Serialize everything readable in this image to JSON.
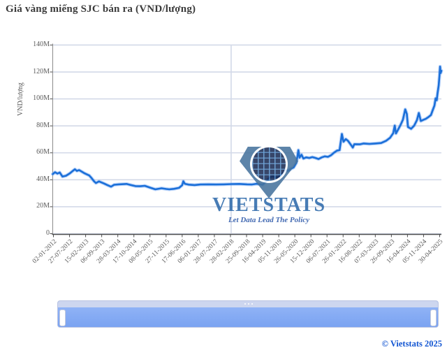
{
  "title": "Giá vàng miếng SJC bán ra (VND/lượng)",
  "watermark": {
    "brand": "VIETSTATS",
    "tagline": "Let Data Lead The Policy"
  },
  "footer": {
    "copyright": "© Vietstats 2025"
  },
  "colors": {
    "line": "#1b6fd8",
    "line_halo": "rgba(96,156,245,0.4)",
    "gridline": "#d3d9e8",
    "axis": "#4d4d4d",
    "tick_text": "#5c5c5c",
    "title_text": "#3b3b3b",
    "watermark_blue": "#2f6bab",
    "slider_track": "#7ea6f2",
    "slider_header": "#cdd6ef",
    "copyright_blue": "#1356d2"
  },
  "slider": {
    "present": true,
    "grip": "dots",
    "handles": [
      "left",
      "right"
    ]
  },
  "chart_data": {
    "type": "line",
    "title": "Giá vàng miếng SJC bán ra (VND/lượng)",
    "xlabel": "",
    "ylabel": "VND/lượng",
    "unit": "million VND per luong",
    "ylim": [
      0,
      140000000
    ],
    "grid": {
      "horizontal": true,
      "vertical_line_x_fraction": 0.459
    },
    "legend": "none",
    "ytick_values": [
      0,
      20,
      40,
      60,
      80,
      100,
      120,
      140
    ],
    "ytick_labels": [
      "0",
      "20M",
      "40M",
      "60M",
      "80M",
      "100M",
      "120M",
      "140M"
    ],
    "xtick_labels": [
      "02-01-2012",
      "27-07-2012",
      "15-02-2013",
      "06-09-2013",
      "28-03-2014",
      "17-10-2014",
      "08-05-2015",
      "27-11-2015",
      "17-06-2016",
      "06-01-2017",
      "28-07-2017",
      "28-02-2018",
      "25-09-2018",
      "16-04-2019",
      "05-11-2019",
      "26-05-2020",
      "15-12-2020",
      "06-07-2021",
      "26-01-2022",
      "16-08-2022",
      "07-03-2023",
      "26-09-2023",
      "16-04-2024",
      "05-11-2024",
      "30-04-2025"
    ],
    "series": [
      {
        "name": "Giá vàng miếng SJC bán ra",
        "color": "#1b6fd8",
        "points_format": "[x_fraction_of_plot_width, value_in_million_VND]",
        "points": [
          [
            0.0,
            44.2
          ],
          [
            0.006,
            45.6
          ],
          [
            0.012,
            44.6
          ],
          [
            0.018,
            45.4
          ],
          [
            0.025,
            42.4
          ],
          [
            0.034,
            43.0
          ],
          [
            0.044,
            44.8
          ],
          [
            0.05,
            46.2
          ],
          [
            0.057,
            47.8
          ],
          [
            0.062,
            46.6
          ],
          [
            0.068,
            47.2
          ],
          [
            0.075,
            46.0
          ],
          [
            0.082,
            44.8
          ],
          [
            0.094,
            43.2
          ],
          [
            0.1,
            41.2
          ],
          [
            0.106,
            39.0
          ],
          [
            0.111,
            37.6
          ],
          [
            0.119,
            38.8
          ],
          [
            0.132,
            37.2
          ],
          [
            0.141,
            36.0
          ],
          [
            0.15,
            34.9
          ],
          [
            0.158,
            36.3
          ],
          [
            0.17,
            36.6
          ],
          [
            0.19,
            36.9
          ],
          [
            0.2,
            36.2
          ],
          [
            0.213,
            35.3
          ],
          [
            0.225,
            35.2
          ],
          [
            0.237,
            35.5
          ],
          [
            0.25,
            34.2
          ],
          [
            0.264,
            32.9
          ],
          [
            0.28,
            33.7
          ],
          [
            0.292,
            33.2
          ],
          [
            0.3,
            32.9
          ],
          [
            0.312,
            33.3
          ],
          [
            0.325,
            34.0
          ],
          [
            0.333,
            36.0
          ],
          [
            0.336,
            38.9
          ],
          [
            0.34,
            37.0
          ],
          [
            0.35,
            36.4
          ],
          [
            0.365,
            36.1
          ],
          [
            0.38,
            36.5
          ],
          [
            0.4,
            36.6
          ],
          [
            0.42,
            36.5
          ],
          [
            0.44,
            36.6
          ],
          [
            0.46,
            36.8
          ],
          [
            0.48,
            36.9
          ],
          [
            0.5,
            36.6
          ],
          [
            0.512,
            36.5
          ],
          [
            0.524,
            37.0
          ],
          [
            0.54,
            36.4
          ],
          [
            0.55,
            39.2
          ],
          [
            0.558,
            41.8
          ],
          [
            0.566,
            42.4
          ],
          [
            0.577,
            41.6
          ],
          [
            0.59,
            44.2
          ],
          [
            0.6,
            47.4
          ],
          [
            0.605,
            46.6
          ],
          [
            0.612,
            48.0
          ],
          [
            0.62,
            49.2
          ],
          [
            0.627,
            52.6
          ],
          [
            0.632,
            62.0
          ],
          [
            0.635,
            56.4
          ],
          [
            0.64,
            58.6
          ],
          [
            0.645,
            55.8
          ],
          [
            0.652,
            56.6
          ],
          [
            0.66,
            56.2
          ],
          [
            0.668,
            56.8
          ],
          [
            0.676,
            56.2
          ],
          [
            0.684,
            55.4
          ],
          [
            0.692,
            56.6
          ],
          [
            0.7,
            57.4
          ],
          [
            0.708,
            57.0
          ],
          [
            0.716,
            58.2
          ],
          [
            0.724,
            60.2
          ],
          [
            0.731,
            61.6
          ],
          [
            0.738,
            62.0
          ],
          [
            0.744,
            74.0
          ],
          [
            0.748,
            68.2
          ],
          [
            0.754,
            70.2
          ],
          [
            0.76,
            68.8
          ],
          [
            0.768,
            65.6
          ],
          [
            0.772,
            63.9
          ],
          [
            0.776,
            66.4
          ],
          [
            0.79,
            66.3
          ],
          [
            0.8,
            66.9
          ],
          [
            0.815,
            66.6
          ],
          [
            0.83,
            66.9
          ],
          [
            0.845,
            67.3
          ],
          [
            0.858,
            69.0
          ],
          [
            0.868,
            71.2
          ],
          [
            0.876,
            74.6
          ],
          [
            0.88,
            80.2
          ],
          [
            0.883,
            74.4
          ],
          [
            0.888,
            77.0
          ],
          [
            0.895,
            80.8
          ],
          [
            0.901,
            84.6
          ],
          [
            0.907,
            92.2
          ],
          [
            0.911,
            88.8
          ],
          [
            0.914,
            79.2
          ],
          [
            0.922,
            77.8
          ],
          [
            0.93,
            80.2
          ],
          [
            0.937,
            84.2
          ],
          [
            0.942,
            89.6
          ],
          [
            0.947,
            83.6
          ],
          [
            0.953,
            84.4
          ],
          [
            0.96,
            85.2
          ],
          [
            0.967,
            86.6
          ],
          [
            0.973,
            88.0
          ],
          [
            0.978,
            92.0
          ],
          [
            0.982,
            95.0
          ],
          [
            0.985,
            100.4
          ],
          [
            0.988,
            99.0
          ],
          [
            0.99,
            104.0
          ],
          [
            0.993,
            110.0
          ],
          [
            0.995,
            117.0
          ],
          [
            0.9965,
            124.0
          ],
          [
            0.998,
            119.2
          ],
          [
            1.0,
            120.9
          ]
        ]
      }
    ]
  }
}
